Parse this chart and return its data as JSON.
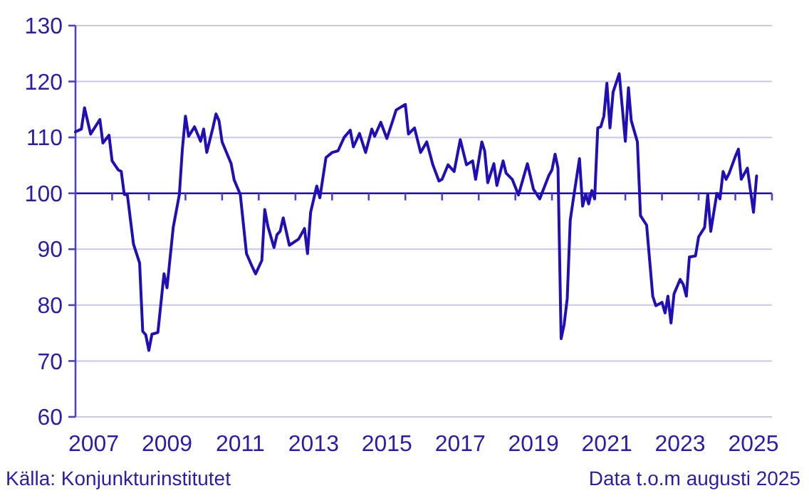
{
  "chart_data": {
    "type": "line",
    "annotations": [
      "Källa: Konjunkturinstitutet",
      "Data t.o.m augusti 2025"
    ],
    "x": [
      "2007-01",
      "2007-03",
      "2007-04",
      "2007-06",
      "2007-09",
      "2007-10",
      "2007-12",
      "2008-01",
      "2008-03",
      "2008-04",
      "2008-05",
      "2008-06",
      "2008-08",
      "2008-10",
      "2008-11",
      "2008-12",
      "2009-01",
      "2009-02",
      "2009-04",
      "2009-06",
      "2009-07",
      "2009-09",
      "2009-11",
      "2009-12",
      "2010-01",
      "2010-02",
      "2010-04",
      "2010-06",
      "2010-07",
      "2010-08",
      "2010-10",
      "2010-11",
      "2010-12",
      "2011-01",
      "2011-04",
      "2011-05",
      "2011-07",
      "2011-09",
      "2011-11",
      "2011-12",
      "2012-02",
      "2012-03",
      "2012-04",
      "2012-06",
      "2012-07",
      "2012-08",
      "2012-09",
      "2012-11",
      "2013-02",
      "2013-04",
      "2013-05",
      "2013-06",
      "2013-08",
      "2013-09",
      "2013-11",
      "2014-01",
      "2014-03",
      "2014-05",
      "2014-07",
      "2014-08",
      "2014-10",
      "2014-12",
      "2015-02",
      "2015-03",
      "2015-05",
      "2015-07",
      "2015-09",
      "2015-10",
      "2016-01",
      "2016-02",
      "2016-04",
      "2016-06",
      "2016-08",
      "2016-10",
      "2016-12",
      "2017-01",
      "2017-03",
      "2017-05",
      "2017-07",
      "2017-09",
      "2017-11",
      "2017-12",
      "2018-02",
      "2018-03",
      "2018-04",
      "2018-06",
      "2018-07",
      "2018-09",
      "2018-10",
      "2018-12",
      "2019-02",
      "2019-05",
      "2019-07",
      "2019-09",
      "2019-12",
      "2020-01",
      "2020-02",
      "2020-03",
      "2020-04",
      "2020-05",
      "2020-06",
      "2020-07",
      "2020-08",
      "2020-10",
      "2020-11",
      "2020-12",
      "2021-01",
      "2021-02",
      "2021-03",
      "2021-04",
      "2021-05",
      "2021-06",
      "2021-07",
      "2021-08",
      "2021-09",
      "2021-11",
      "2022-01",
      "2022-02",
      "2022-03",
      "2022-05",
      "2022-06",
      "2022-08",
      "2022-10",
      "2022-11",
      "2023-01",
      "2023-02",
      "2023-03",
      "2023-04",
      "2023-05",
      "2023-07",
      "2023-08",
      "2023-09",
      "2023-10",
      "2023-12",
      "2024-01",
      "2024-03",
      "2024-04",
      "2024-05",
      "2024-07",
      "2024-08",
      "2024-09",
      "2024-10",
      "2024-11",
      "2025-01",
      "2025-02",
      "2025-03",
      "2025-05",
      "2025-07",
      "2025-08"
    ],
    "series": [
      {
        "color": "#1f0fb4",
        "values": [
          111.0,
          111.5,
          115.3,
          110.6,
          113.2,
          109.0,
          110.4,
          105.8,
          104.2,
          103.9,
          99.8,
          99.7,
          90.9,
          87.5,
          75.3,
          74.7,
          71.9,
          74.8,
          75.1,
          85.6,
          83.1,
          93.9,
          99.8,
          107.9,
          113.8,
          110.2,
          111.9,
          109.3,
          111.5,
          107.3,
          111.7,
          114.2,
          113.0,
          109.2,
          105.3,
          102.4,
          99.8,
          89.2,
          86.7,
          85.6,
          88.0,
          97.1,
          94.1,
          90.3,
          92.6,
          93.2,
          95.6,
          90.7,
          91.8,
          93.7,
          89.2,
          96.6,
          101.3,
          99.2,
          106.4,
          107.3,
          107.6,
          110.0,
          111.3,
          108.3,
          110.7,
          107.3,
          111.5,
          110.2,
          112.7,
          109.8,
          113.2,
          114.9,
          115.9,
          110.6,
          111.7,
          107.3,
          109.2,
          105.1,
          102.2,
          102.5,
          105.1,
          103.9,
          109.6,
          105.1,
          105.8,
          102.5,
          109.2,
          107.6,
          101.9,
          105.3,
          101.4,
          105.8,
          103.6,
          102.5,
          99.7,
          105.3,
          100.7,
          99.0,
          103.2,
          104.2,
          107.0,
          104.5,
          74.0,
          76.5,
          81.2,
          95.2,
          99.0,
          106.2,
          97.7,
          99.8,
          98.1,
          100.5,
          99.0,
          111.7,
          111.9,
          113.8,
          119.7,
          111.7,
          118.1,
          121.4,
          109.3,
          118.9,
          113.0,
          109.2,
          96.0,
          94.3,
          81.6,
          79.9,
          80.5,
          78.6,
          81.6,
          76.8,
          82.0,
          84.6,
          83.7,
          81.6,
          88.6,
          88.8,
          92.2,
          93.9,
          99.8,
          93.2,
          100.0,
          99.0,
          103.9,
          102.5,
          103.6,
          106.6,
          107.9,
          102.5,
          104.5,
          96.6,
          103.1
        ]
      }
    ],
    "xlim": [
      "2007-01",
      "2026-01"
    ],
    "xticks": [
      {
        "value": "2007-07",
        "label": "2007"
      },
      {
        "value": "2009-07",
        "label": "2009"
      },
      {
        "value": "2011-07",
        "label": "2011"
      },
      {
        "value": "2013-07",
        "label": "2013"
      },
      {
        "value": "2015-07",
        "label": "2015"
      },
      {
        "value": "2017-07",
        "label": "2017"
      },
      {
        "value": "2019-07",
        "label": "2019"
      },
      {
        "value": "2021-07",
        "label": "2021"
      },
      {
        "value": "2023-07",
        "label": "2023"
      },
      {
        "value": "2025-07",
        "label": "2025"
      }
    ],
    "ylim": [
      60,
      130
    ],
    "yticks": [
      60,
      70,
      80,
      90,
      100,
      110,
      120,
      130
    ],
    "grid": "y",
    "ref_lines": [
      {
        "axis": "y",
        "value": 100,
        "color": "#1f0fb4"
      }
    ]
  }
}
